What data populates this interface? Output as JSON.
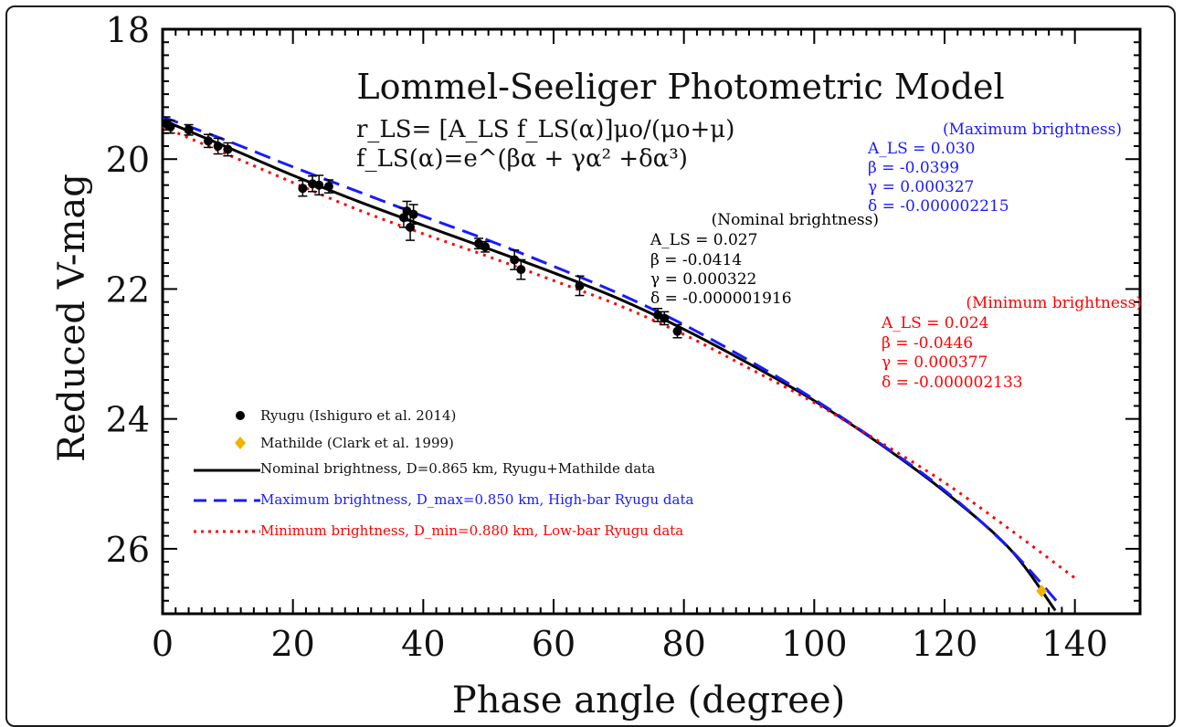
{
  "chart_data": {
    "type": "scatter",
    "title": "Lommel-Seeliger Photometric Model",
    "xlabel": "Phase angle (degree)",
    "ylabel": "Reduced V-mag",
    "xlim": [
      0,
      150
    ],
    "ylim": [
      27,
      18
    ],
    "x_ticks": [
      "0",
      "20",
      "40",
      "60",
      "80",
      "100",
      "120",
      "140"
    ],
    "y_ticks": [
      "18",
      "20",
      "22",
      "24",
      "26"
    ],
    "equation_1": "r_LS= [A_LS f_LS(α)]μo/(μo+μ)",
    "equation_2": "f_LS(α)=e^(βα + γα² +δα³)",
    "annotations": {
      "maximum": {
        "header": "(Maximum brightness)",
        "a": "A_LS = 0.030",
        "beta": "β = -0.0399",
        "gamma": "γ = 0.000327",
        "delta": "δ = -0.000002215",
        "color": "#1a1aff"
      },
      "nominal": {
        "header": "(Nominal brightness)",
        "a": "A_LS = 0.027",
        "beta": "β = -0.0414",
        "gamma": "γ = 0.000322",
        "delta": "δ = -0.000001916",
        "color": "#000000"
      },
      "minimum": {
        "header": "(Minimum brightness)",
        "a": "A_LS = 0.024",
        "beta": "β = -0.0446",
        "gamma": "γ = 0.000377",
        "delta": "δ = -0.000002133",
        "color": "#ff0000"
      }
    },
    "legend": {
      "placement": "lower-left",
      "entries": [
        {
          "label": "Ryugu (Ishiguro et al. 2014)",
          "marker": "circle",
          "color": "#000000"
        },
        {
          "label": "Mathilde (Clark et al. 1999)",
          "marker": "diamond",
          "color": "#f0b400"
        },
        {
          "label": "Nominal brightness, D=0.865 km, Ryugu+Mathilde data",
          "line": "solid",
          "color": "#000000"
        },
        {
          "label": "Maximum brightness, D_max=0.850 km, High-bar Ryugu data",
          "line": "dashed",
          "color": "#1a1aff"
        },
        {
          "label": "Minimum brightness, D_min=0.880 km, Low-bar Ryugu data",
          "line": "dotted",
          "color": "#ff0000"
        }
      ]
    },
    "ryugu_points": [
      {
        "x": 0.5,
        "y": 19.45,
        "err": 0.1
      },
      {
        "x": 1.2,
        "y": 19.5,
        "err": 0.1
      },
      {
        "x": 4.0,
        "y": 19.55,
        "err": 0.08
      },
      {
        "x": 7.0,
        "y": 19.72,
        "err": 0.1
      },
      {
        "x": 8.5,
        "y": 19.8,
        "err": 0.12
      },
      {
        "x": 10.0,
        "y": 19.85,
        "err": 0.1
      },
      {
        "x": 21.5,
        "y": 20.45,
        "err": 0.12
      },
      {
        "x": 23.0,
        "y": 20.38,
        "err": 0.12
      },
      {
        "x": 24.0,
        "y": 20.4,
        "err": 0.15
      },
      {
        "x": 25.5,
        "y": 20.42,
        "err": 0.1
      },
      {
        "x": 37.0,
        "y": 20.9,
        "err": 0.15
      },
      {
        "x": 37.5,
        "y": 20.8,
        "err": 0.15
      },
      {
        "x": 38.0,
        "y": 21.05,
        "err": 0.2
      },
      {
        "x": 38.5,
        "y": 20.85,
        "err": 0.15
      },
      {
        "x": 48.5,
        "y": 21.3,
        "err": 0.08
      },
      {
        "x": 49.5,
        "y": 21.35,
        "err": 0.08
      },
      {
        "x": 54.0,
        "y": 21.55,
        "err": 0.15
      },
      {
        "x": 55.0,
        "y": 21.7,
        "err": 0.15
      },
      {
        "x": 64.0,
        "y": 21.95,
        "err": 0.15
      },
      {
        "x": 76.0,
        "y": 22.4,
        "err": 0.1
      },
      {
        "x": 77.0,
        "y": 22.45,
        "err": 0.1
      },
      {
        "x": 79.0,
        "y": 22.65,
        "err": 0.1
      }
    ],
    "mathilde_points": [
      {
        "x": 134.9,
        "y": 26.65
      }
    ],
    "series": [
      {
        "name": "Nominal brightness, D=0.865 km, Ryugu+Mathilde data",
        "style": "solid",
        "color": "#000000",
        "x": [
          0,
          10,
          20,
          30,
          40,
          50,
          60,
          70,
          80,
          90,
          100,
          110,
          120,
          130,
          137
        ],
        "y": [
          19.4,
          19.82,
          20.25,
          20.65,
          21.02,
          21.38,
          21.75,
          22.15,
          22.62,
          23.15,
          23.72,
          24.38,
          25.12,
          26.0,
          26.95
        ]
      },
      {
        "name": "Maximum brightness, D_max=0.850 km, High-bar Ryugu data",
        "style": "dashed",
        "color": "#1a1aff",
        "x": [
          0,
          10,
          20,
          30,
          40,
          50,
          60,
          70,
          80,
          90,
          100,
          110,
          120,
          130,
          138
        ],
        "y": [
          19.35,
          19.72,
          20.12,
          20.5,
          20.88,
          21.25,
          21.65,
          22.07,
          22.55,
          23.1,
          23.7,
          24.37,
          25.1,
          26.0,
          26.9
        ]
      },
      {
        "name": "Minimum brightness, D_min=0.880 km, Low-bar Ryugu data",
        "style": "dotted",
        "color": "#ff0000",
        "x": [
          0,
          10,
          20,
          30,
          40,
          50,
          60,
          70,
          80,
          90,
          100,
          110,
          120,
          130,
          140
        ],
        "y": [
          19.5,
          19.93,
          20.36,
          20.78,
          21.15,
          21.5,
          21.87,
          22.25,
          22.7,
          23.22,
          23.75,
          24.35,
          24.98,
          25.7,
          26.45
        ]
      }
    ]
  }
}
